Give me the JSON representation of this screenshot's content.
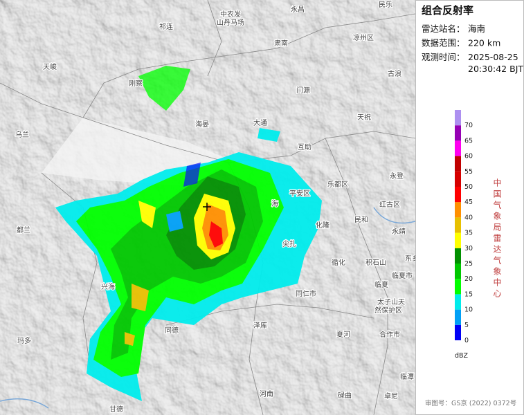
{
  "panel": {
    "title": "组合反射率",
    "rows": [
      {
        "label": "雷达站名：",
        "value": "海南"
      },
      {
        "label": "数据范围：",
        "value": "220 km"
      },
      {
        "label": "观测时间：",
        "value": "2025-08-25"
      }
    ],
    "time": "20:30:42 BJT"
  },
  "legend": {
    "ticks": [
      "0",
      "5",
      "10",
      "15",
      "20",
      "25",
      "30",
      "35",
      "40",
      "45",
      "50",
      "55",
      "60",
      "65",
      "70"
    ],
    "colors": [
      "#0000f6",
      "#01a0f6",
      "#00ecec",
      "#01ff00",
      "#00c800",
      "#019000",
      "#ffff00",
      "#e7c000",
      "#ff9000",
      "#ff0000",
      "#d60000",
      "#c00000",
      "#ff00f0",
      "#9600b4",
      "#ad90f0"
    ],
    "unit": "dBZ"
  },
  "agency": "中国气象局雷达气象中心",
  "credit": "审图号：GS京 (2022) 0372号",
  "map_labels": [
    "民乐",
    "永昌",
    "中农发",
    "山丹马场",
    "祁连",
    "肃南",
    "凉州区",
    "天峻",
    "刚察",
    "古浪",
    "门源",
    "海晏",
    "大通",
    "天祝",
    "乌兰",
    "互助",
    "乐都区",
    "平安区",
    "永登",
    "红古区",
    "民和",
    "海",
    "化隆",
    "都兰",
    "永靖",
    "尖扎",
    "循化",
    "积石山",
    "临夏市",
    "兴海",
    "临夏",
    "同仁市",
    "太子山天",
    "然保护区",
    "泽库",
    "同德",
    "合作市",
    "夏河",
    "玛多",
    "碌曲",
    "河南",
    "甘德",
    "临潭",
    "卓尼",
    "东乡"
  ]
}
